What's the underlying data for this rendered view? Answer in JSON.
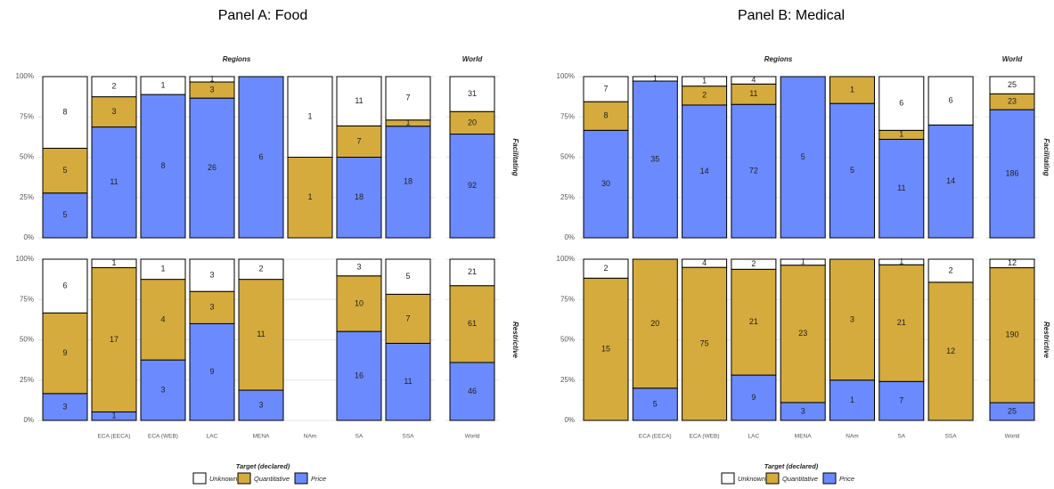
{
  "chart_data": [
    {
      "type": "bar",
      "stacking": "percent",
      "title": "Panel A: Food",
      "column_facets": [
        "Regions",
        "World"
      ],
      "categories": [
        null,
        "ECA (EECA)",
        "ECA (WEB)",
        "LAC",
        "MENA",
        "NAm",
        "SA",
        "SSA",
        "World"
      ],
      "legend_title": "Target (declared)",
      "series": [
        {
          "name": "Unknown",
          "color": "#ffffff"
        },
        {
          "name": "Quantitative",
          "color": "#d4ab3c"
        },
        {
          "name": "Price",
          "color": "#6b8afd"
        }
      ],
      "rows": [
        {
          "name": "Facilitating",
          "values": [
            [
              8,
              2,
              1,
              1,
              0,
              1,
              11,
              7,
              31
            ],
            [
              5,
              3,
              0,
              3,
              0,
              1,
              7,
              1,
              20
            ],
            [
              5,
              11,
              8,
              26,
              6,
              0,
              18,
              18,
              92
            ]
          ]
        },
        {
          "name": "Restrictive",
          "values": [
            [
              6,
              1,
              1,
              3,
              2,
              null,
              3,
              5,
              21
            ],
            [
              9,
              17,
              4,
              3,
              11,
              null,
              10,
              7,
              61
            ],
            [
              3,
              1,
              3,
              9,
              3,
              null,
              16,
              11,
              46
            ]
          ]
        }
      ],
      "ylim": [
        0,
        100
      ],
      "yticks": [
        {
          "value": 0,
          "label": "0%"
        },
        {
          "value": 25,
          "label": "25%"
        },
        {
          "value": 50,
          "label": "50%"
        },
        {
          "value": 75,
          "label": "75%"
        },
        {
          "value": 100,
          "label": "100%"
        }
      ],
      "grid": true
    },
    {
      "type": "bar",
      "stacking": "percent",
      "title": "Panel B: Medical",
      "column_facets": [
        "Regions",
        "World"
      ],
      "categories": [
        null,
        "ECA (EECA)",
        "ECA (WEB)",
        "LAC",
        "MENA",
        "NAm",
        "SA",
        "SSA",
        "World"
      ],
      "legend_title": "Target (declared)",
      "series": [
        {
          "name": "Unknown",
          "color": "#ffffff"
        },
        {
          "name": "Quantitative",
          "color": "#d4ab3c"
        },
        {
          "name": "Price",
          "color": "#6b8afd"
        }
      ],
      "rows": [
        {
          "name": "Facilitating",
          "values": [
            [
              7,
              1,
              1,
              4,
              0,
              0,
              6,
              6,
              25
            ],
            [
              8,
              0,
              2,
              11,
              0,
              1,
              1,
              0,
              23
            ],
            [
              30,
              35,
              14,
              72,
              5,
              5,
              11,
              14,
              186
            ]
          ]
        },
        {
          "name": "Restrictive",
          "values": [
            [
              2,
              0,
              4,
              2,
              1,
              0,
              1,
              2,
              12
            ],
            [
              15,
              20,
              75,
              21,
              23,
              3,
              21,
              12,
              190
            ],
            [
              0,
              5,
              0,
              9,
              3,
              1,
              7,
              0,
              25
            ]
          ]
        }
      ],
      "ylim": [
        0,
        100
      ],
      "yticks": [
        {
          "value": 0,
          "label": "0%"
        },
        {
          "value": 25,
          "label": "25%"
        },
        {
          "value": 50,
          "label": "50%"
        },
        {
          "value": 75,
          "label": "75%"
        },
        {
          "value": 100,
          "label": "100%"
        }
      ],
      "grid": true
    }
  ]
}
